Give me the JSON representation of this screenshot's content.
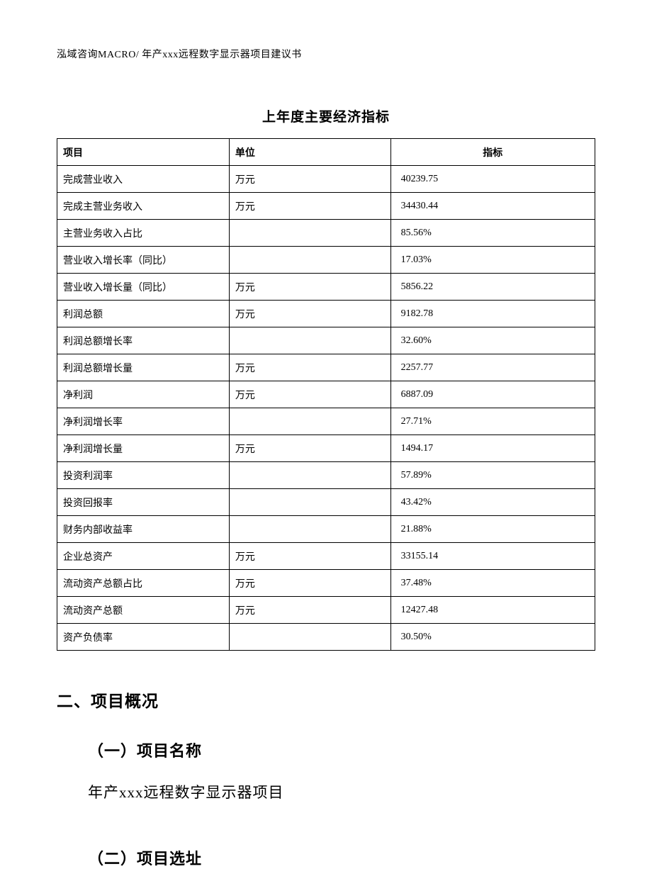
{
  "header": "泓域咨询MACRO/ 年产xxx远程数字显示器项目建议书",
  "table": {
    "title": "上年度主要经济指标",
    "columns": [
      "项目",
      "单位",
      "指标"
    ],
    "rows": [
      {
        "item": "完成营业收入",
        "unit": "万元",
        "value": "40239.75"
      },
      {
        "item": "完成主营业务收入",
        "unit": "万元",
        "value": "34430.44"
      },
      {
        "item": "主营业务收入占比",
        "unit": "",
        "value": "85.56%"
      },
      {
        "item": "营业收入增长率（同比）",
        "unit": "",
        "value": "17.03%"
      },
      {
        "item": "营业收入增长量（同比）",
        "unit": "万元",
        "value": "5856.22"
      },
      {
        "item": "利润总额",
        "unit": "万元",
        "value": "9182.78"
      },
      {
        "item": "利润总额增长率",
        "unit": "",
        "value": "32.60%"
      },
      {
        "item": "利润总额增长量",
        "unit": "万元",
        "value": "2257.77"
      },
      {
        "item": "净利润",
        "unit": "万元",
        "value": "6887.09"
      },
      {
        "item": "净利润增长率",
        "unit": "",
        "value": "27.71%"
      },
      {
        "item": "净利润增长量",
        "unit": "万元",
        "value": "1494.17"
      },
      {
        "item": "投资利润率",
        "unit": "",
        "value": "57.89%"
      },
      {
        "item": "投资回报率",
        "unit": "",
        "value": "43.42%"
      },
      {
        "item": "财务内部收益率",
        "unit": "",
        "value": "21.88%"
      },
      {
        "item": "企业总资产",
        "unit": "万元",
        "value": "33155.14"
      },
      {
        "item": "流动资产总额占比",
        "unit": "万元",
        "value": "37.48%"
      },
      {
        "item": "流动资产总额",
        "unit": "万元",
        "value": "12427.48"
      },
      {
        "item": "资产负债率",
        "unit": "",
        "value": "30.50%"
      }
    ]
  },
  "sections": {
    "heading_2": "二、项目概况",
    "sub_1": "（一）项目名称",
    "body_1": "年产xxx远程数字显示器项目",
    "sub_2": "（二）项目选址"
  }
}
